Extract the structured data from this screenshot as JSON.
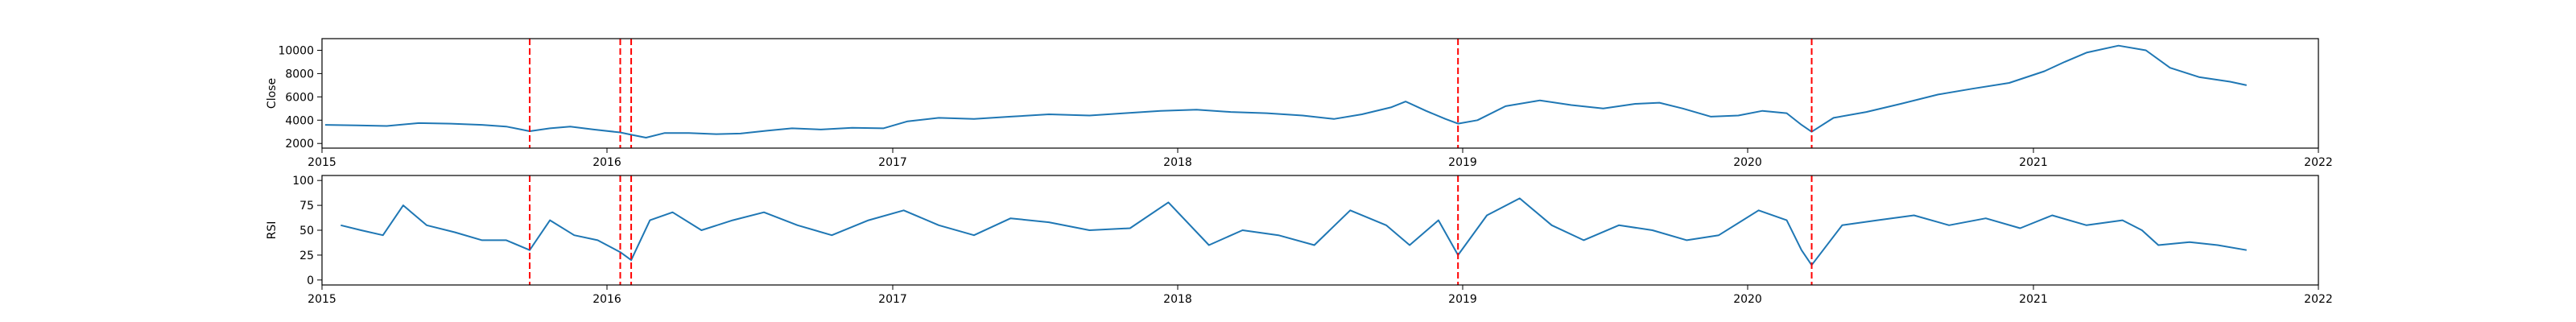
{
  "chart_data": [
    {
      "type": "line",
      "ylabel": "Close",
      "xlim": [
        "2015-01-01",
        "2022-01-01"
      ],
      "ylim": [
        1600,
        11000
      ],
      "yticks": [
        2000,
        4000,
        6000,
        8000,
        10000
      ],
      "xticks": [
        {
          "date": "2015-01-01",
          "label": "2015"
        },
        {
          "date": "2016-01-01",
          "label": "2016"
        },
        {
          "date": "2017-01-01",
          "label": "2017"
        },
        {
          "date": "2018-01-01",
          "label": "2018"
        },
        {
          "date": "2019-01-01",
          "label": "2019"
        },
        {
          "date": "2020-01-01",
          "label": "2020"
        },
        {
          "date": "2021-01-01",
          "label": "2021"
        },
        {
          "date": "2022-01-01",
          "label": "2022"
        }
      ],
      "series_color": "#1f77b4",
      "event_color": "#ff0000",
      "event_lines": [
        "2015-09-24",
        "2016-01-18",
        "2016-02-01",
        "2018-12-26",
        "2020-03-23"
      ],
      "series": [
        {
          "points": [
            [
              "2015-01-05",
              3600
            ],
            [
              "2015-02-15",
              3550
            ],
            [
              "2015-03-25",
              3500
            ],
            [
              "2015-05-05",
              3750
            ],
            [
              "2015-06-15",
              3700
            ],
            [
              "2015-07-25",
              3600
            ],
            [
              "2015-08-25",
              3450
            ],
            [
              "2015-09-24",
              3050
            ],
            [
              "2015-10-20",
              3300
            ],
            [
              "2015-11-15",
              3450
            ],
            [
              "2015-12-15",
              3200
            ],
            [
              "2016-01-18",
              2950
            ],
            [
              "2016-02-01",
              2750
            ],
            [
              "2016-02-20",
              2500
            ],
            [
              "2016-03-15",
              2900
            ],
            [
              "2016-04-15",
              2900
            ],
            [
              "2016-05-20",
              2800
            ],
            [
              "2016-06-20",
              2850
            ],
            [
              "2016-07-25",
              3100
            ],
            [
              "2016-08-25",
              3300
            ],
            [
              "2016-10-01",
              3200
            ],
            [
              "2016-11-10",
              3350
            ],
            [
              "2016-12-20",
              3300
            ],
            [
              "2017-01-20",
              3900
            ],
            [
              "2017-03-01",
              4200
            ],
            [
              "2017-04-15",
              4100
            ],
            [
              "2017-06-01",
              4300
            ],
            [
              "2017-07-20",
              4500
            ],
            [
              "2017-09-10",
              4400
            ],
            [
              "2017-10-25",
              4600
            ],
            [
              "2017-12-10",
              4800
            ],
            [
              "2018-01-25",
              4900
            ],
            [
              "2018-03-10",
              4700
            ],
            [
              "2018-04-25",
              4600
            ],
            [
              "2018-06-10",
              4400
            ],
            [
              "2018-07-20",
              4100
            ],
            [
              "2018-08-25",
              4500
            ],
            [
              "2018-10-01",
              5100
            ],
            [
              "2018-10-20",
              5600
            ],
            [
              "2018-11-15",
              4800
            ],
            [
              "2018-12-10",
              4100
            ],
            [
              "2018-12-26",
              3700
            ],
            [
              "2019-01-20",
              4000
            ],
            [
              "2019-02-25",
              5200
            ],
            [
              "2019-04-10",
              5700
            ],
            [
              "2019-05-20",
              5300
            ],
            [
              "2019-06-30",
              5000
            ],
            [
              "2019-08-10",
              5400
            ],
            [
              "2019-09-10",
              5500
            ],
            [
              "2019-10-10",
              5000
            ],
            [
              "2019-11-15",
              4300
            ],
            [
              "2019-12-20",
              4400
            ],
            [
              "2020-01-20",
              4800
            ],
            [
              "2020-02-20",
              4600
            ],
            [
              "2020-03-10",
              3600
            ],
            [
              "2020-03-23",
              3000
            ],
            [
              "2020-04-20",
              4200
            ],
            [
              "2020-06-01",
              4700
            ],
            [
              "2020-07-15",
              5400
            ],
            [
              "2020-09-01",
              6200
            ],
            [
              "2020-10-15",
              6700
            ],
            [
              "2020-12-01",
              7200
            ],
            [
              "2021-01-15",
              8200
            ],
            [
              "2021-02-10",
              9000
            ],
            [
              "2021-03-10",
              9800
            ],
            [
              "2021-04-20",
              10400
            ],
            [
              "2021-05-25",
              10000
            ],
            [
              "2021-06-25",
              8500
            ],
            [
              "2021-08-01",
              7700
            ],
            [
              "2021-09-10",
              7300
            ],
            [
              "2021-10-01",
              7000
            ]
          ]
        }
      ]
    },
    {
      "type": "line",
      "ylabel": "RSI",
      "xlim": [
        "2015-01-01",
        "2022-01-01"
      ],
      "ylim": [
        -5,
        105
      ],
      "yticks": [
        0,
        25,
        50,
        75,
        100
      ],
      "xticks": [
        {
          "date": "2015-01-01",
          "label": "2015"
        },
        {
          "date": "2016-01-01",
          "label": "2016"
        },
        {
          "date": "2017-01-01",
          "label": "2017"
        },
        {
          "date": "2018-01-01",
          "label": "2018"
        },
        {
          "date": "2019-01-01",
          "label": "2019"
        },
        {
          "date": "2020-01-01",
          "label": "2020"
        },
        {
          "date": "2021-01-01",
          "label": "2021"
        },
        {
          "date": "2022-01-01",
          "label": "2022"
        }
      ],
      "series_color": "#1f77b4",
      "event_color": "#ff0000",
      "event_lines": [
        "2015-09-24",
        "2016-01-18",
        "2016-02-01",
        "2018-12-26",
        "2020-03-23"
      ],
      "series": [
        {
          "points": [
            [
              "2015-01-25",
              55
            ],
            [
              "2015-02-20",
              50
            ],
            [
              "2015-03-20",
              45
            ],
            [
              "2015-04-15",
              75
            ],
            [
              "2015-05-15",
              55
            ],
            [
              "2015-06-20",
              48
            ],
            [
              "2015-07-25",
              40
            ],
            [
              "2015-08-25",
              40
            ],
            [
              "2015-09-24",
              30
            ],
            [
              "2015-10-20",
              60
            ],
            [
              "2015-11-20",
              45
            ],
            [
              "2015-12-20",
              40
            ],
            [
              "2016-01-18",
              28
            ],
            [
              "2016-02-01",
              20
            ],
            [
              "2016-02-25",
              60
            ],
            [
              "2016-03-25",
              68
            ],
            [
              "2016-05-01",
              50
            ],
            [
              "2016-06-10",
              60
            ],
            [
              "2016-07-20",
              68
            ],
            [
              "2016-09-01",
              55
            ],
            [
              "2016-10-15",
              45
            ],
            [
              "2016-12-01",
              60
            ],
            [
              "2017-01-15",
              70
            ],
            [
              "2017-03-01",
              55
            ],
            [
              "2017-04-15",
              45
            ],
            [
              "2017-06-01",
              62
            ],
            [
              "2017-07-20",
              58
            ],
            [
              "2017-09-10",
              50
            ],
            [
              "2017-11-01",
              52
            ],
            [
              "2017-12-20",
              78
            ],
            [
              "2018-02-10",
              35
            ],
            [
              "2018-03-25",
              50
            ],
            [
              "2018-05-10",
              45
            ],
            [
              "2018-06-25",
              35
            ],
            [
              "2018-08-10",
              70
            ],
            [
              "2018-09-25",
              55
            ],
            [
              "2018-10-25",
              35
            ],
            [
              "2018-12-01",
              60
            ],
            [
              "2018-12-26",
              25
            ],
            [
              "2019-02-01",
              65
            ],
            [
              "2019-03-15",
              82
            ],
            [
              "2019-04-25",
              55
            ],
            [
              "2019-06-05",
              40
            ],
            [
              "2019-07-20",
              55
            ],
            [
              "2019-09-01",
              50
            ],
            [
              "2019-10-15",
              40
            ],
            [
              "2019-11-25",
              45
            ],
            [
              "2020-01-15",
              70
            ],
            [
              "2020-02-20",
              60
            ],
            [
              "2020-03-10",
              30
            ],
            [
              "2020-03-23",
              15
            ],
            [
              "2020-05-01",
              55
            ],
            [
              "2020-06-15",
              60
            ],
            [
              "2020-08-01",
              65
            ],
            [
              "2020-09-15",
              55
            ],
            [
              "2020-11-01",
              62
            ],
            [
              "2020-12-15",
              52
            ],
            [
              "2021-01-25",
              65
            ],
            [
              "2021-03-10",
              55
            ],
            [
              "2021-04-25",
              60
            ],
            [
              "2021-05-20",
              50
            ],
            [
              "2021-06-10",
              35
            ],
            [
              "2021-07-20",
              38
            ],
            [
              "2021-08-25",
              35
            ],
            [
              "2021-10-01",
              30
            ]
          ]
        }
      ]
    }
  ]
}
